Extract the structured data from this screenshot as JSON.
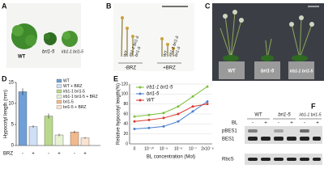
{
  "panel_a": {
    "label": "A",
    "genotypes": [
      "WT",
      "bri1-5",
      "irb1-1 bri1-5"
    ]
  },
  "panel_b": {
    "label": "B",
    "lanes_minus": [
      "WT",
      "irb1-1 bri1-5",
      "bri1-5"
    ],
    "lanes_plus": [
      "WT",
      "irb1-1 bri1-5",
      "bri1-5"
    ],
    "treatments": [
      "-BRZ",
      "+BRZ"
    ]
  },
  "panel_c": {
    "label": "C",
    "genotypes": [
      "WT",
      "bri1-5",
      "irb1-1 bri1-5"
    ]
  },
  "panel_labels": {
    "d": "D",
    "e": "E"
  },
  "chart_data": [
    {
      "type": "bar",
      "y_label": "Hypocotyl length (mm)",
      "x_label": "BRZ",
      "categories": [
        "-",
        "+",
        "-",
        "+",
        "-",
        "+"
      ],
      "values": [
        12.8,
        4.5,
        7.0,
        2.5,
        3.2,
        1.8
      ],
      "errors": [
        0.8,
        0.3,
        0.6,
        0.3,
        0.3,
        0.2
      ],
      "colors": [
        "#6f9fd8",
        "#cfe0f5",
        "#b9d98a",
        "#e6f2d2",
        "#f2b98c",
        "#fbe3cf"
      ],
      "legend": [
        "WT",
        "WT + BRZ",
        "irb1-1 bri1-5",
        "irb1-1 bri1-5 + BRZ",
        "bri1-5",
        "bri1-5 + BRZ"
      ],
      "ylim": [
        0,
        15
      ],
      "yticks": [
        0,
        5,
        10,
        15
      ]
    },
    {
      "type": "line",
      "y_label": "Relative hypocotyl length(%)",
      "x_label": "BL concentration (Mol)",
      "categories": [
        "0",
        "10⁻¹⁰",
        "10⁻⁹",
        "10⁻⁸",
        "10⁻⁷",
        "2x10⁻⁶"
      ],
      "series": [
        {
          "name": "irb1-1 bri1-5",
          "color": "#7cbf3a",
          "values": [
            55,
            58,
            62,
            75,
            95,
            115
          ]
        },
        {
          "name": "bri1-5",
          "color": "#4a7fd0",
          "values": [
            30,
            32,
            35,
            45,
            65,
            85
          ]
        },
        {
          "name": "WT",
          "color": "#d83a2e",
          "values": [
            45,
            48,
            52,
            60,
            75,
            80
          ]
        }
      ],
      "ylim": [
        0,
        120
      ],
      "yticks": [
        0,
        20,
        40,
        60,
        80,
        100,
        120
      ]
    }
  ],
  "panel_f": {
    "label": "F",
    "treatment": "BL",
    "signs": [
      "-",
      "+",
      "-",
      "+",
      "-",
      "+"
    ],
    "genotypes": [
      "WT",
      "bri1-5",
      "irb1-1 bri1-5"
    ],
    "rows": [
      "pBES1",
      "BES1",
      "RbcS"
    ]
  }
}
